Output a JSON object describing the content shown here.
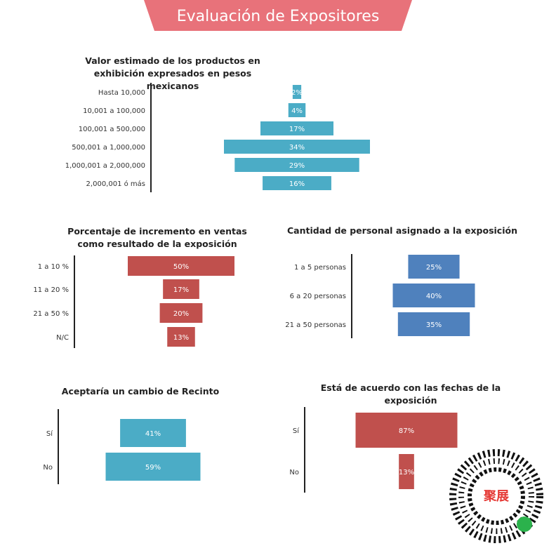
{
  "title": "Evaluación de Expositores",
  "logo": "聚展",
  "chart_data": [
    {
      "type": "funnel",
      "title": "Valor estimado de los productos  en exhibición expresados en pesos mexicanos",
      "categories": [
        "Hasta 10,000",
        "10,001 a 100,000",
        "100,001 a 500,000",
        "500,001 a 1,000,000",
        "1,000,001 a 2,000,000",
        "2,000,001 ó más"
      ],
      "values": [
        2,
        4,
        17,
        34,
        29,
        16
      ],
      "value_labels": [
        "2%",
        "4%",
        "17%",
        "34%",
        "29%",
        "16%"
      ],
      "color": "#4bacc6"
    },
    {
      "type": "funnel",
      "title": "Porcentaje  de incremento en ventas como resultado de la exposición",
      "categories": [
        "1 a 10 %",
        "11 a 20 %",
        "21 a 50 %",
        "N/C"
      ],
      "values": [
        50,
        17,
        20,
        13
      ],
      "value_labels": [
        "50%",
        "17%",
        "20%",
        "13%"
      ],
      "color": "#c0504d"
    },
    {
      "type": "funnel",
      "title": "Cantidad de personal asignado a la exposición",
      "categories": [
        "1 a 5 personas",
        "6 a 20 personas",
        "21 a 50 personas"
      ],
      "values": [
        25,
        40,
        35
      ],
      "value_labels": [
        "25%",
        "40%",
        "35%"
      ],
      "color": "#4f81bd"
    },
    {
      "type": "funnel",
      "title": "Aceptaría un cambio de Recinto",
      "categories": [
        "Sí",
        "No"
      ],
      "values": [
        41,
        59
      ],
      "value_labels": [
        "41%",
        "59%"
      ],
      "color": "#4bacc6"
    },
    {
      "type": "funnel",
      "title": "Está de acuerdo con las fechas de la exposición",
      "categories": [
        "Sí",
        "No"
      ],
      "values": [
        87,
        13
      ],
      "value_labels": [
        "87%",
        "13%"
      ],
      "color": "#c0504d"
    }
  ]
}
